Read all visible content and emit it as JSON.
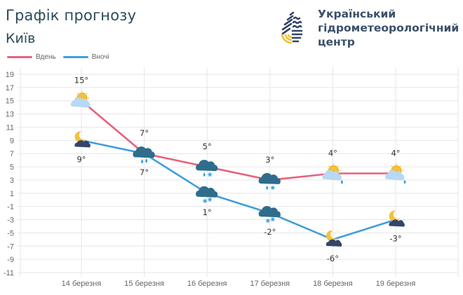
{
  "header": {
    "title": "Графік прогнозу",
    "city": "Київ",
    "org_name": [
      "Український",
      "гідрометеорологічний",
      "центр"
    ]
  },
  "colors": {
    "day": "#e8627e",
    "night": "#3f9fdc",
    "grid": "#e6e6e6",
    "title": "#2b4a5a",
    "org": "#3a4f6a"
  },
  "chart_data": {
    "type": "line",
    "title": "Графік прогнозу",
    "subtitle": "Київ",
    "categories": [
      "14 березня",
      "15 березня",
      "16 березня",
      "17 березня",
      "18 березня",
      "19 березня"
    ],
    "series": [
      {
        "name": "Вдень",
        "values": [
          15,
          7,
          5,
          3,
          4,
          4
        ],
        "labels": [
          "15°",
          "7°",
          "5°",
          "3°",
          "4°",
          "4°"
        ],
        "icons": [
          "sun-cloud-icon",
          "cloud-rain-icon",
          "cloud-rain-snow-icon",
          "cloud-rain-snow-icon",
          "sun-cloud-rain-icon",
          "sun-cloud-rain-icon"
        ]
      },
      {
        "name": "Вночі",
        "values": [
          9,
          7,
          1,
          -2,
          -6,
          -3
        ],
        "labels": [
          "9°",
          "7°",
          "1°",
          "-2°",
          "-6°",
          "-3°"
        ],
        "icons": [
          "moon-cloud-icon",
          "cloud-rain-icon",
          "cloud-snow-icon",
          "cloud-snow-icon",
          "moon-cloud-icon",
          "moon-cloud-icon"
        ]
      }
    ],
    "yticks": [
      19,
      17,
      15,
      13,
      11,
      9,
      7,
      5,
      3,
      1,
      -1,
      -3,
      -5,
      -7,
      -9,
      -11
    ],
    "ylim": [
      -11,
      19
    ],
    "xlabel": "",
    "ylabel": "",
    "grid": true,
    "legend_position": "top-left"
  }
}
